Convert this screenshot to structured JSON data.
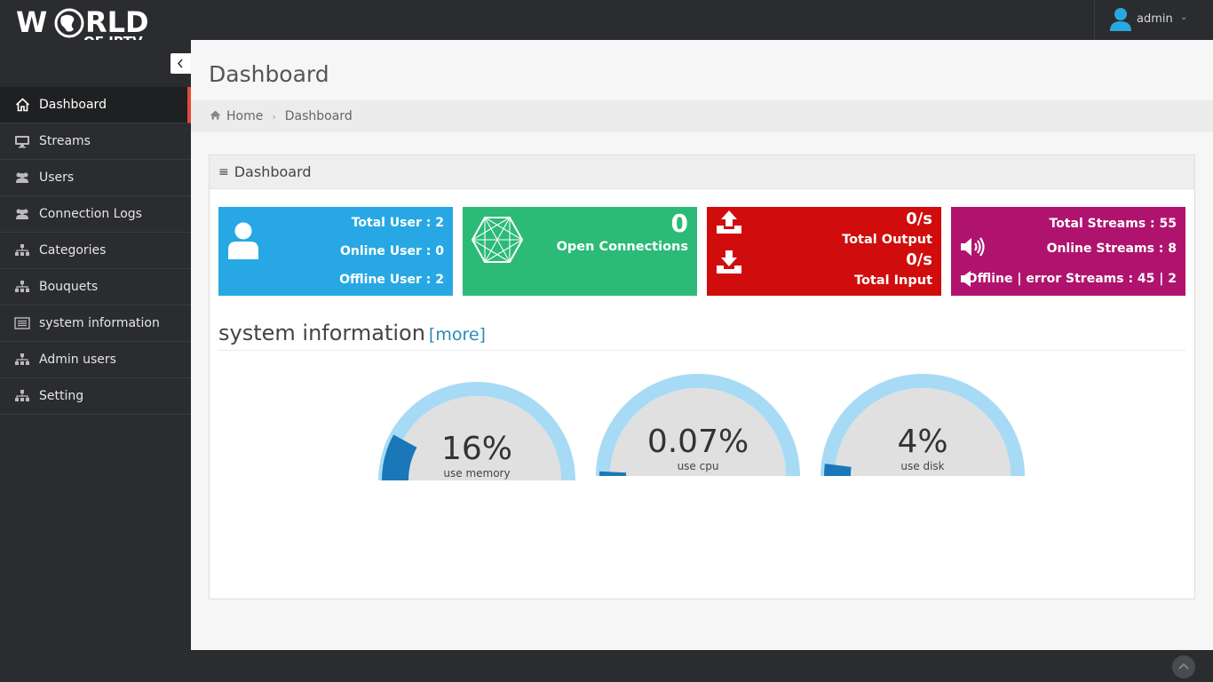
{
  "brand": {
    "line1": "WORLD",
    "line2": "OF IPTV",
    "line1_left": "W",
    "line1_right": "RLD"
  },
  "user": {
    "name": "admin"
  },
  "sidebar": {
    "items": [
      {
        "label": "Dashboard",
        "icon": "home-icon",
        "active": true
      },
      {
        "label": "Streams",
        "icon": "monitor-icon"
      },
      {
        "label": "Users",
        "icon": "users-icon"
      },
      {
        "label": "Connection Logs",
        "icon": "users-icon"
      },
      {
        "label": "Categories",
        "icon": "sitemap-icon"
      },
      {
        "label": "Bouquets",
        "icon": "sitemap-icon"
      },
      {
        "label": "system information",
        "icon": "list-icon"
      },
      {
        "label": "Admin users",
        "icon": "sitemap-icon"
      },
      {
        "label": "Setting",
        "icon": "sitemap-icon"
      }
    ]
  },
  "page": {
    "title": "Dashboard"
  },
  "breadcrumb": {
    "home": "Home",
    "current": "Dashboard"
  },
  "panel": {
    "title": "Dashboard"
  },
  "tiles": {
    "users": {
      "total": "Total User : 2",
      "online": "Online User : 0",
      "offline": "Offline User : 2",
      "color": "#27a8e4"
    },
    "connections": {
      "count": "0",
      "label": "Open Connections",
      "color": "#2bbb77"
    },
    "traffic": {
      "output_rate": "0/s",
      "output_label": "Total Output",
      "input_rate": "0/s",
      "input_label": "Total Input",
      "color": "#d10c0c"
    },
    "streams": {
      "total": "Total Streams : 55",
      "online": "Online Streams : 8",
      "offline": "Offline | error Streams : 45 | 2",
      "color": "#b0136d"
    }
  },
  "system_info": {
    "title": "system information",
    "more_link": "[more]",
    "gauges": [
      {
        "value_text": "16%",
        "label": "use memory",
        "percent": 16
      },
      {
        "value_text": "0.07%",
        "label": "use cpu",
        "percent": 0.07
      },
      {
        "value_text": "4%",
        "label": "use disk",
        "percent": 4
      }
    ]
  }
}
